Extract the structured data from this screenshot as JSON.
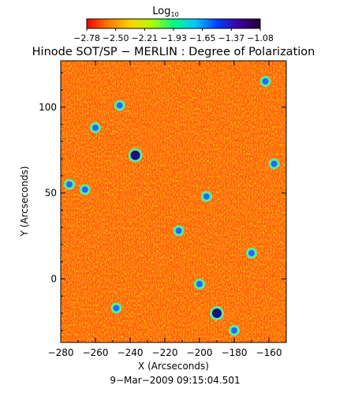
{
  "colorbar": {
    "label": "Log",
    "label_sub": "10",
    "tick_labels": [
      "−2.78",
      "−2.50",
      "−2.21",
      "−1.93",
      "−1.65",
      "−1.37",
      "−1.08"
    ],
    "colors": [
      "#ff0000",
      "#ff7a00",
      "#ffd000",
      "#b0ff00",
      "#00ff80",
      "#00c8ff",
      "#0040ff",
      "#4000a0",
      "#200030"
    ]
  },
  "title": "Hinode SOT/SP − MERLIN : Degree of Polarization",
  "footer": "9−Mar−2009 09:15:04.501",
  "chart_data": {
    "type": "heatmap",
    "title": "Hinode SOT/SP − MERLIN : Degree of Polarization",
    "xlabel": "X (Arcseconds)",
    "ylabel": "Y (Arcseconds)",
    "xlim": [
      -280,
      -150
    ],
    "ylim": [
      -37,
      127
    ],
    "xticks": [
      -280,
      -260,
      -240,
      -220,
      -200,
      -180,
      -160
    ],
    "xtick_labels": [
      "−280",
      "−260",
      "−240",
      "−220",
      "−200",
      "−180",
      "−160"
    ],
    "yticks": [
      0,
      50,
      100
    ],
    "ytick_labels": [
      "0",
      "50",
      "100"
    ],
    "colorbar_range": [
      -2.78,
      -1.08
    ],
    "colorbar_scale": "log10",
    "grid": false,
    "features": [
      {
        "x": -237,
        "y": 72,
        "value": -1.08
      },
      {
        "x": -260,
        "y": 88,
        "value": -1.37
      },
      {
        "x": -246,
        "y": 101,
        "value": -1.37
      },
      {
        "x": -275,
        "y": 55,
        "value": -1.37
      },
      {
        "x": -266,
        "y": 52,
        "value": -1.37
      },
      {
        "x": -196,
        "y": 48,
        "value": -1.37
      },
      {
        "x": -212,
        "y": 28,
        "value": -1.37
      },
      {
        "x": -190,
        "y": -20,
        "value": -1.08
      },
      {
        "x": -248,
        "y": -17,
        "value": -1.37
      },
      {
        "x": -200,
        "y": -3,
        "value": -1.37
      },
      {
        "x": -170,
        "y": 15,
        "value": -1.37
      },
      {
        "x": -162,
        "y": 115,
        "value": -1.37
      },
      {
        "x": -157,
        "y": 67,
        "value": -1.37
      },
      {
        "x": -180,
        "y": -30,
        "value": -1.37
      }
    ]
  }
}
